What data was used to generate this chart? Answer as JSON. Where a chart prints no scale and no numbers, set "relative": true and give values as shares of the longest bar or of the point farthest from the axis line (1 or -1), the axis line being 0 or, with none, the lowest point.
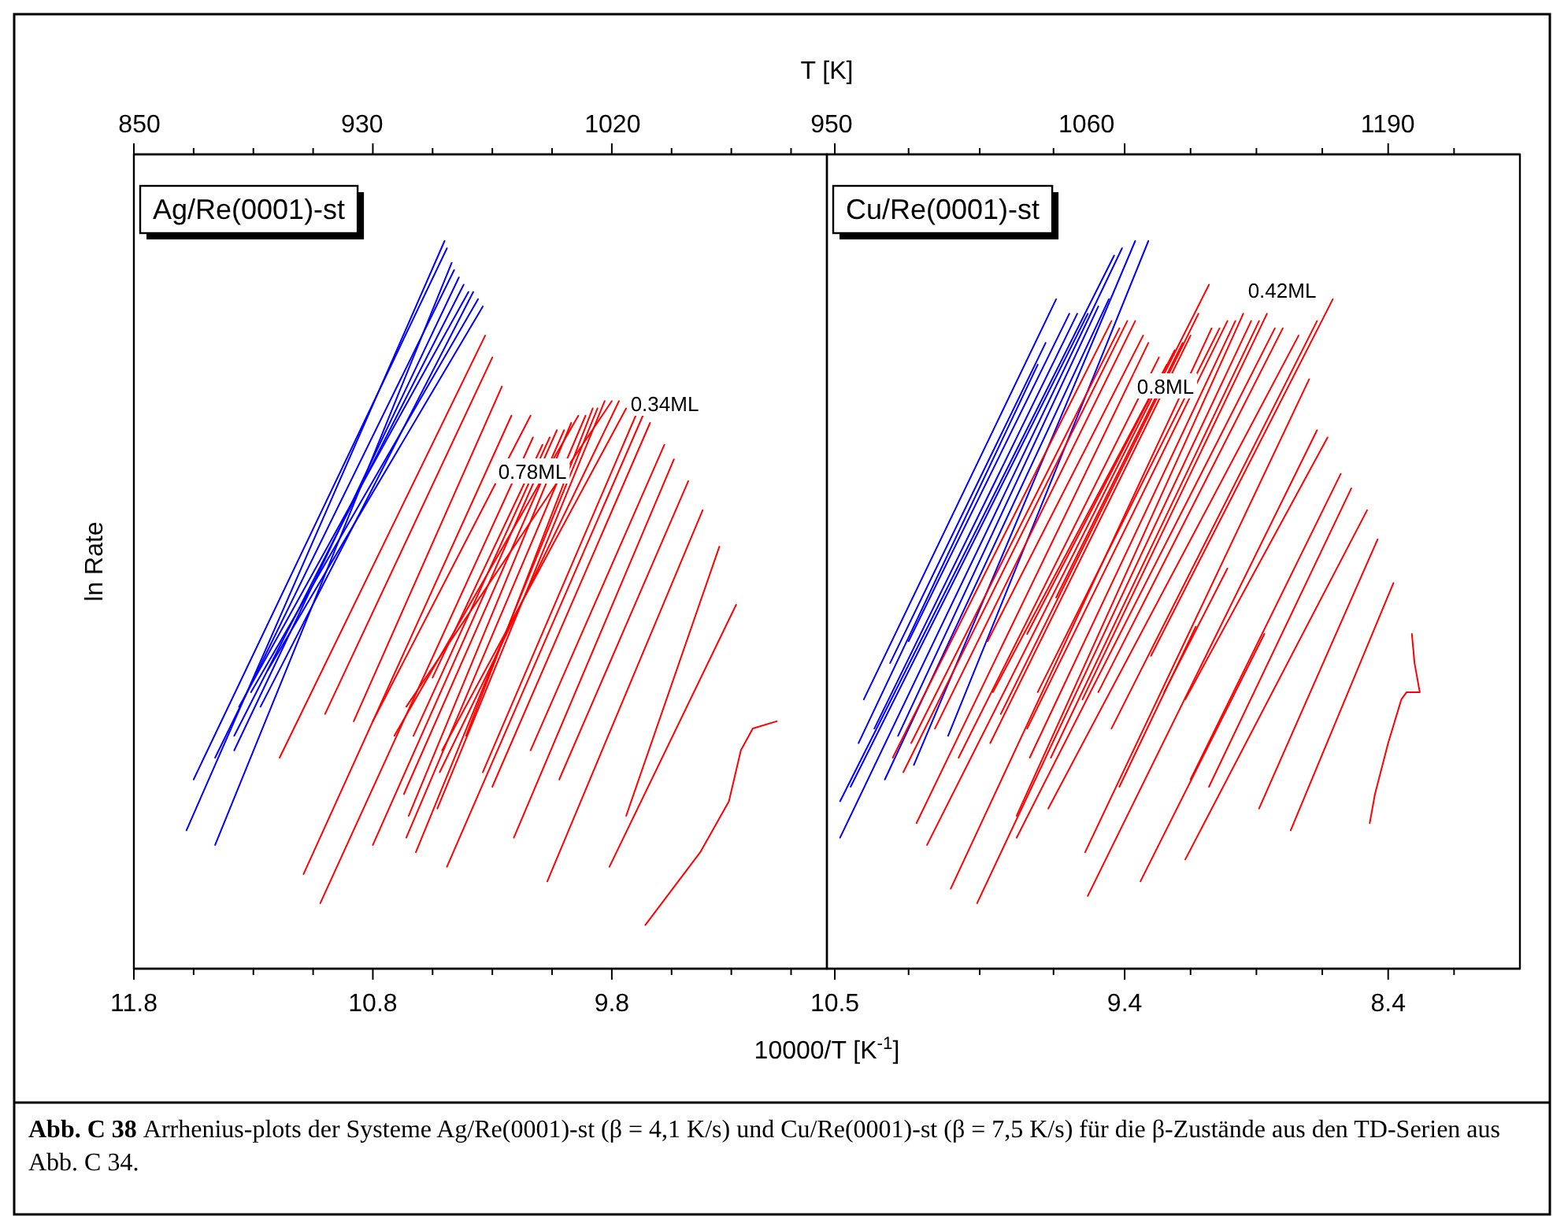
{
  "chart_data": [
    {
      "type": "line",
      "title": "Ag/Re(0001)-st",
      "xlabel": "10000/T [K$^{-1}$]",
      "x2label": "T [K]",
      "ylabel": "ln Rate",
      "relative": true,
      "xlim": [
        11.8,
        8.9
      ],
      "xticks": [
        11.8,
        {
          "value": 11.55,
          "label": null
        },
        {
          "value": 11.3,
          "label": null
        },
        {
          "value": 11.05,
          "label": null
        },
        10.8,
        {
          "value": 10.55,
          "label": null
        },
        {
          "value": 10.3,
          "label": null
        },
        {
          "value": 10.05,
          "label": null
        },
        9.8,
        {
          "value": 9.55,
          "label": null
        },
        {
          "value": 9.3,
          "label": null
        },
        {
          "value": 9.05,
          "label": null
        }
      ],
      "x2lim": [
        848,
        1097
      ],
      "x2ticks": [
        850,
        930,
        1020
      ],
      "annotations": [
        "0.34ML",
        "0.78ML"
      ],
      "series": [
        {
          "color": "#0000ff",
          "x": [
            11.58,
            10.5
          ],
          "values": [
            0.19,
            1.0
          ]
        },
        {
          "color": "#0000ff",
          "x": [
            11.55,
            10.49
          ],
          "values": [
            0.26,
            0.99
          ]
        },
        {
          "color": "#0000ff",
          "x": [
            11.46,
            10.47
          ],
          "values": [
            0.17,
            0.97
          ]
        },
        {
          "color": "#0000ff",
          "x": [
            11.46,
            10.46
          ],
          "values": [
            0.29,
            0.96
          ]
        },
        {
          "color": "#0000ff",
          "x": [
            11.38,
            10.44
          ],
          "values": [
            0.3,
            0.95
          ]
        },
        {
          "color": "#0000ff",
          "x": [
            11.38,
            10.42
          ],
          "values": [
            0.32,
            0.94
          ]
        },
        {
          "color": "#0000ff",
          "x": [
            11.36,
            10.4
          ],
          "values": [
            0.36,
            0.93
          ]
        },
        {
          "color": "#0000ff",
          "x": [
            11.27,
            10.38
          ],
          "values": [
            0.36,
            0.93
          ]
        },
        {
          "color": "#0000ff",
          "x": [
            11.31,
            10.36
          ],
          "values": [
            0.38,
            0.92
          ]
        },
        {
          "color": "#0000ff",
          "x": [
            11.24,
            10.34
          ],
          "values": [
            0.41,
            0.91
          ]
        },
        {
          "color": "#ff0000",
          "x": [
            11.19,
            10.33
          ],
          "values": [
            0.29,
            0.87
          ]
        },
        {
          "color": "#ff0000",
          "x": [
            11.0,
            10.3
          ],
          "values": [
            0.35,
            0.84
          ]
        },
        {
          "color": "#ff0000",
          "x": [
            10.88,
            10.26
          ],
          "values": [
            0.34,
            0.8
          ]
        },
        {
          "color": "#ff0000",
          "x": [
            11.09,
            10.22
          ],
          "values": [
            0.13,
            0.76
          ]
        },
        {
          "color": "#ff0000",
          "x": [
            10.8,
            10.14
          ],
          "values": [
            0.34,
            0.76
          ]
        },
        {
          "color": "#ff0000",
          "x": [
            11.02,
            10.13
          ],
          "values": [
            0.09,
            0.73
          ]
        },
        {
          "color": "#ff0000",
          "x": [
            10.55,
            10.09
          ],
          "values": [
            0.4,
            0.72
          ]
        },
        {
          "color": "#ff0000",
          "x": [
            10.63,
            10.06
          ],
          "values": [
            0.32,
            0.73
          ]
        },
        {
          "color": "#ff0000",
          "x": [
            10.8,
            10.03
          ],
          "values": [
            0.17,
            0.74
          ]
        },
        {
          "color": "#ff0000",
          "x": [
            10.67,
            10.0
          ],
          "values": [
            0.24,
            0.74
          ]
        },
        {
          "color": "#ff0000",
          "x": [
            10.65,
            9.97
          ],
          "values": [
            0.21,
            0.75
          ]
        },
        {
          "color": "#ff0000",
          "x": [
            10.71,
            9.94
          ],
          "values": [
            0.32,
            0.76
          ]
        },
        {
          "color": "#ff0000",
          "x": [
            10.66,
            9.91
          ],
          "values": [
            0.18,
            0.76
          ]
        },
        {
          "color": "#ff0000",
          "x": [
            10.41,
            9.88
          ],
          "values": [
            0.32,
            0.77
          ]
        },
        {
          "color": "#ff0000",
          "x": [
            10.62,
            9.86
          ],
          "values": [
            0.16,
            0.77
          ]
        },
        {
          "color": "#ff0000",
          "x": [
            10.53,
            9.83
          ],
          "values": [
            0.22,
            0.78
          ]
        },
        {
          "color": "#ff0000",
          "x": [
            10.66,
            9.8
          ],
          "values": [
            0.36,
            0.78
          ]
        },
        {
          "color": "#ff0000",
          "x": [
            10.52,
            9.77
          ],
          "values": [
            0.27,
            0.78
          ]
        },
        {
          "color": "#ff0000",
          "x": [
            10.51,
            9.74
          ],
          "values": [
            0.3,
            0.77
          ]
        },
        {
          "color": "#ff0000",
          "x": [
            10.34,
            9.7
          ],
          "values": [
            0.27,
            0.76
          ]
        },
        {
          "color": "#ff0000",
          "x": [
            10.49,
            9.67
          ],
          "values": [
            0.14,
            0.76
          ]
        },
        {
          "color": "#ff0000",
          "x": [
            10.3,
            9.64
          ],
          "values": [
            0.25,
            0.75
          ]
        },
        {
          "color": "#ff0000",
          "x": [
            10.14,
            9.58
          ],
          "values": [
            0.3,
            0.72
          ]
        },
        {
          "color": "#ff0000",
          "x": [
            10.21,
            9.54
          ],
          "values": [
            0.18,
            0.7
          ]
        },
        {
          "color": "#ff0000",
          "x": [
            10.02,
            9.48
          ],
          "values": [
            0.26,
            0.67
          ]
        },
        {
          "color": "#ff0000",
          "x": [
            10.07,
            9.42
          ],
          "values": [
            0.12,
            0.63
          ]
        },
        {
          "color": "#ff0000",
          "x": [
            9.74,
            9.35
          ],
          "values": [
            0.21,
            0.58
          ]
        },
        {
          "color": "#ff0000",
          "x": [
            9.81,
            9.28
          ],
          "values": [
            0.14,
            0.5
          ]
        },
        {
          "color": "#ff0000",
          "x": [
            9.66,
            9.43,
            9.31,
            9.26,
            9.21,
            9.11
          ],
          "values": [
            0.06,
            0.16,
            0.23,
            0.3,
            0.33,
            0.34
          ]
        }
      ]
    },
    {
      "type": "line",
      "title": "Cu/Re(0001)-st",
      "relative": true,
      "xlim": [
        10.53,
        7.9
      ],
      "xticks": [
        10.5,
        {
          "value": 10.22,
          "label": null
        },
        {
          "value": 9.95,
          "label": null
        },
        {
          "value": 9.67,
          "label": null
        },
        9.4,
        {
          "value": 9.15,
          "label": null
        },
        {
          "value": 8.9,
          "label": null
        },
        {
          "value": 8.65,
          "label": null
        },
        8.4,
        {
          "value": 8.15,
          "label": null
        }
      ],
      "x2lim": [
        948,
        1247
      ],
      "x2ticks": [
        950,
        1060,
        1190
      ],
      "annotations": [
        "0.42ML",
        "0.8ML",
        "Abb. C 38",
        "Arrhenius-plots der Systeme Ag/Re(0001)-st (β = 4,1 K/s) und Cu/Re(0001)-st (β = 7,5 K/s) für die β-Zustände aus den TD-Serien aus Abb. C 34."
      ],
      "series": [
        {
          "color": "#0000ff",
          "x": [
            10.39,
            9.66
          ],
          "values": [
            0.37,
            0.92
          ]
        },
        {
          "color": "#0000ff",
          "x": [
            10.29,
            9.7
          ],
          "values": [
            0.42,
            0.86
          ]
        },
        {
          "color": "#0000ff",
          "x": [
            10.41,
            9.73
          ],
          "values": [
            0.31,
            0.83
          ]
        },
        {
          "color": "#0000ff",
          "x": [
            10.22,
            9.61
          ],
          "values": [
            0.45,
            0.9
          ]
        },
        {
          "color": "#0000ff",
          "x": [
            10.35,
            9.58
          ],
          "values": [
            0.33,
            0.9
          ]
        },
        {
          "color": "#0000ff",
          "x": [
            10.48,
            9.44
          ],
          "values": [
            0.23,
            0.98
          ]
        },
        {
          "color": "#0000ff",
          "x": [
            10.44,
            9.54
          ],
          "values": [
            0.25,
            0.9
          ]
        },
        {
          "color": "#0000ff",
          "x": [
            10.48,
            9.41
          ],
          "values": [
            0.18,
            0.99
          ]
        },
        {
          "color": "#0000ff",
          "x": [
            10.26,
            9.5
          ],
          "values": [
            0.32,
            0.91
          ]
        },
        {
          "color": "#0000ff",
          "x": [
            10.31,
            9.46
          ],
          "values": [
            0.26,
            0.92
          ]
        },
        {
          "color": "#0000ff",
          "x": [
            10.2,
            9.36
          ],
          "values": [
            0.28,
            1.0
          ]
        },
        {
          "color": "#0000ff",
          "x": [
            10.07,
            9.31
          ],
          "values": [
            0.32,
            1.0
          ]
        },
        {
          "color": "#ff0000",
          "x": [
            10.28,
            9.45
          ],
          "values": [
            0.29,
            0.89
          ]
        },
        {
          "color": "#ff0000",
          "x": [
            10.21,
            9.42
          ],
          "values": [
            0.31,
            0.88
          ]
        },
        {
          "color": "#ff0000",
          "x": [
            10.24,
            9.39
          ],
          "values": [
            0.27,
            0.89
          ]
        },
        {
          "color": "#ff0000",
          "x": [
            10.12,
            9.36
          ],
          "values": [
            0.33,
            0.89
          ]
        },
        {
          "color": "#ff0000",
          "x": [
            9.92,
            9.33
          ],
          "values": [
            0.45,
            0.87
          ]
        },
        {
          "color": "#ff0000",
          "x": [
            10.19,
            9.31
          ],
          "values": [
            0.2,
            0.86
          ]
        },
        {
          "color": "#ff0000",
          "x": [
            10.03,
            9.27
          ],
          "values": [
            0.29,
            0.84
          ]
        },
        {
          "color": "#ff0000",
          "x": [
            9.9,
            9.24
          ],
          "values": [
            0.38,
            0.83
          ]
        },
        {
          "color": "#ff0000",
          "x": [
            9.77,
            9.21
          ],
          "values": [
            0.46,
            0.85
          ]
        },
        {
          "color": "#ff0000",
          "x": [
            10.15,
            9.08
          ],
          "values": [
            0.17,
            0.94
          ]
        },
        {
          "color": "#ff0000",
          "x": [
            9.66,
            9.18
          ],
          "values": [
            0.51,
            0.86
          ]
        },
        {
          "color": "#ff0000",
          "x": [
            9.87,
            9.12
          ],
          "values": [
            0.35,
            0.9
          ]
        },
        {
          "color": "#ff0000",
          "x": [
            9.91,
            9.15
          ],
          "values": [
            0.31,
            0.87
          ]
        },
        {
          "color": "#ff0000",
          "x": [
            10.06,
            9.07
          ],
          "values": [
            0.11,
            0.88
          ]
        },
        {
          "color": "#ff0000",
          "x": [
            9.73,
            9.04
          ],
          "values": [
            0.38,
            0.88
          ]
        },
        {
          "color": "#ff0000",
          "x": [
            9.77,
            9.01
          ],
          "values": [
            0.33,
            0.89
          ]
        },
        {
          "color": "#ff0000",
          "x": [
            9.76,
            8.98
          ],
          "values": [
            0.29,
            0.89
          ]
        },
        {
          "color": "#ff0000",
          "x": [
            9.81,
            8.95
          ],
          "values": [
            0.21,
            0.9
          ]
        },
        {
          "color": "#ff0000",
          "x": [
            9.96,
            8.92
          ],
          "values": [
            0.09,
            0.89
          ]
        },
        {
          "color": "#ff0000",
          "x": [
            9.68,
            8.89
          ],
          "values": [
            0.29,
            0.89
          ]
        },
        {
          "color": "#ff0000",
          "x": [
            9.56,
            8.86
          ],
          "values": [
            0.37,
            0.9
          ]
        },
        {
          "color": "#ff0000",
          "x": [
            9.81,
            8.83
          ],
          "values": [
            0.18,
            0.88
          ]
        },
        {
          "color": "#ff0000",
          "x": [
            9.5,
            8.8
          ],
          "values": [
            0.38,
            0.88
          ]
        },
        {
          "color": "#ff0000",
          "x": [
            9.69,
            8.74
          ],
          "values": [
            0.22,
            0.87
          ]
        },
        {
          "color": "#ff0000",
          "x": [
            9.45,
            8.67
          ],
          "values": [
            0.33,
            0.89
          ]
        },
        {
          "color": "#ff0000",
          "x": [
            9.3,
            8.61
          ],
          "values": [
            0.43,
            0.92
          ]
        },
        {
          "color": "#ff0000",
          "x": [
            9.55,
            8.7
          ],
          "values": [
            0.16,
            0.81
          ]
        },
        {
          "color": "#ff0000",
          "x": [
            9.54,
            8.67
          ],
          "values": [
            0.1,
            0.74
          ]
        },
        {
          "color": "#ff0000",
          "x": [
            9.17,
            8.63
          ],
          "values": [
            0.37,
            0.73
          ]
        },
        {
          "color": "#ff0000",
          "x": [
            9.15,
            8.58
          ],
          "values": [
            0.26,
            0.68
          ]
        },
        {
          "color": "#ff0000",
          "x": [
            9.08,
            8.54
          ],
          "values": [
            0.25,
            0.66
          ]
        },
        {
          "color": "#ff0000",
          "x": [
            9.17,
            8.48
          ],
          "values": [
            0.15,
            0.63
          ]
        },
        {
          "color": "#ff0000",
          "x": [
            8.89,
            8.44
          ],
          "values": [
            0.22,
            0.59
          ]
        },
        {
          "color": "#ff0000",
          "x": [
            8.77,
            8.38
          ],
          "values": [
            0.19,
            0.53
          ]
        },
        {
          "color": "#ff0000",
          "x": [
            9.42,
            9.13
          ],
          "values": [
            0.25,
            0.47
          ]
        },
        {
          "color": "#ff0000",
          "x": [
            9.25,
            9.01
          ],
          "values": [
            0.38,
            0.55
          ]
        },
        {
          "color": "#ff0000",
          "x": [
            9.34,
            8.87
          ],
          "values": [
            0.12,
            0.46
          ]
        },
        {
          "color": "#ff0000",
          "x": [
            8.47,
            8.45,
            8.4,
            8.35,
            8.33,
            8.28,
            8.3,
            8.31
          ],
          "values": [
            0.2,
            0.24,
            0.31,
            0.37,
            0.38,
            0.38,
            0.42,
            0.46
          ]
        }
      ]
    }
  ]
}
